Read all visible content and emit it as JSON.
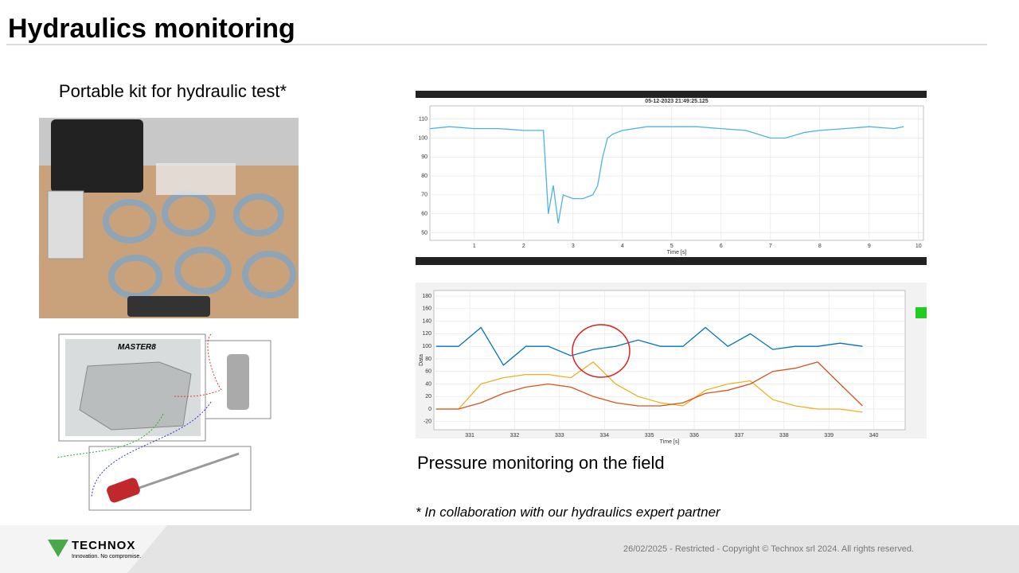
{
  "header": {
    "title": "Hydraulics monitoring"
  },
  "left": {
    "caption": "Portable kit for hydraulic test*",
    "device_label": "MASTER8"
  },
  "right": {
    "caption": "Pressure monitoring on the field",
    "note": "* In collaboration with our hydraulics expert partner"
  },
  "footer": {
    "brand": "TECHNOX",
    "tagline": "Innovation. No compromise.",
    "copyright": "26/02/2025 - Restricted - Copyright © Technox srl 2024. All rights reserved."
  },
  "chart_data": [
    {
      "type": "line",
      "title": "05-12-2023 21:49:25.125",
      "x_label": "Time [s]",
      "xlim": [
        0.1,
        10.1
      ],
      "xticks": [
        1,
        2,
        3,
        4,
        5,
        6,
        7,
        8,
        9,
        10
      ],
      "ylim": [
        46,
        117
      ],
      "yticks": [
        50,
        60,
        70,
        80,
        90,
        100,
        110
      ],
      "grid": true,
      "x": [
        0.1,
        0.5,
        1.0,
        1.5,
        2.0,
        2.4,
        2.5,
        2.6,
        2.7,
        2.8,
        3.0,
        3.2,
        3.4,
        3.5,
        3.6,
        3.7,
        3.8,
        4.0,
        4.5,
        5.0,
        5.5,
        6.0,
        6.5,
        7.0,
        7.3,
        7.7,
        8.0,
        8.5,
        9.0,
        9.5,
        9.7
      ],
      "series": [
        {
          "name": null,
          "color": "#4db3e6",
          "values": [
            105,
            106,
            105,
            105,
            104,
            104,
            60,
            75,
            55,
            70,
            68,
            68,
            70,
            75,
            90,
            100,
            102,
            104,
            106,
            106,
            106,
            105,
            104,
            100,
            100,
            103,
            104,
            105,
            106,
            105,
            106
          ]
        }
      ]
    },
    {
      "type": "line",
      "x_label": "Time [s]",
      "y_label": "Data",
      "xlim": [
        330.2,
        340.7
      ],
      "xticks": [
        331,
        332,
        333,
        334,
        335,
        336,
        337,
        338,
        339,
        340
      ],
      "ylim": [
        -33,
        189
      ],
      "yticks": [
        -20,
        0,
        20,
        40,
        60,
        80,
        100,
        120,
        140,
        160,
        180
      ],
      "grid": true,
      "x": [
        330.25,
        330.75,
        331.25,
        331.75,
        332.25,
        332.75,
        333.25,
        333.75,
        334.25,
        334.75,
        335.25,
        335.75,
        336.25,
        336.75,
        337.25,
        337.75,
        338.25,
        338.75,
        339.25,
        339.75
      ],
      "series": [
        {
          "name": null,
          "color": "#0072bd",
          "values": [
            100,
            100,
            130,
            70,
            100,
            100,
            85,
            95,
            100,
            110,
            100,
            100,
            130,
            100,
            120,
            95,
            100,
            100,
            105,
            100
          ]
        },
        {
          "name": null,
          "color": "#edb120",
          "values": [
            0,
            0,
            40,
            50,
            55,
            55,
            50,
            75,
            40,
            20,
            10,
            5,
            30,
            40,
            45,
            15,
            5,
            0,
            0,
            -5
          ]
        },
        {
          "name": null,
          "color": "#d95319",
          "values": [
            0,
            0,
            10,
            25,
            35,
            40,
            35,
            20,
            10,
            5,
            5,
            10,
            25,
            30,
            40,
            60,
            65,
            75,
            40,
            5
          ]
        }
      ]
    }
  ]
}
